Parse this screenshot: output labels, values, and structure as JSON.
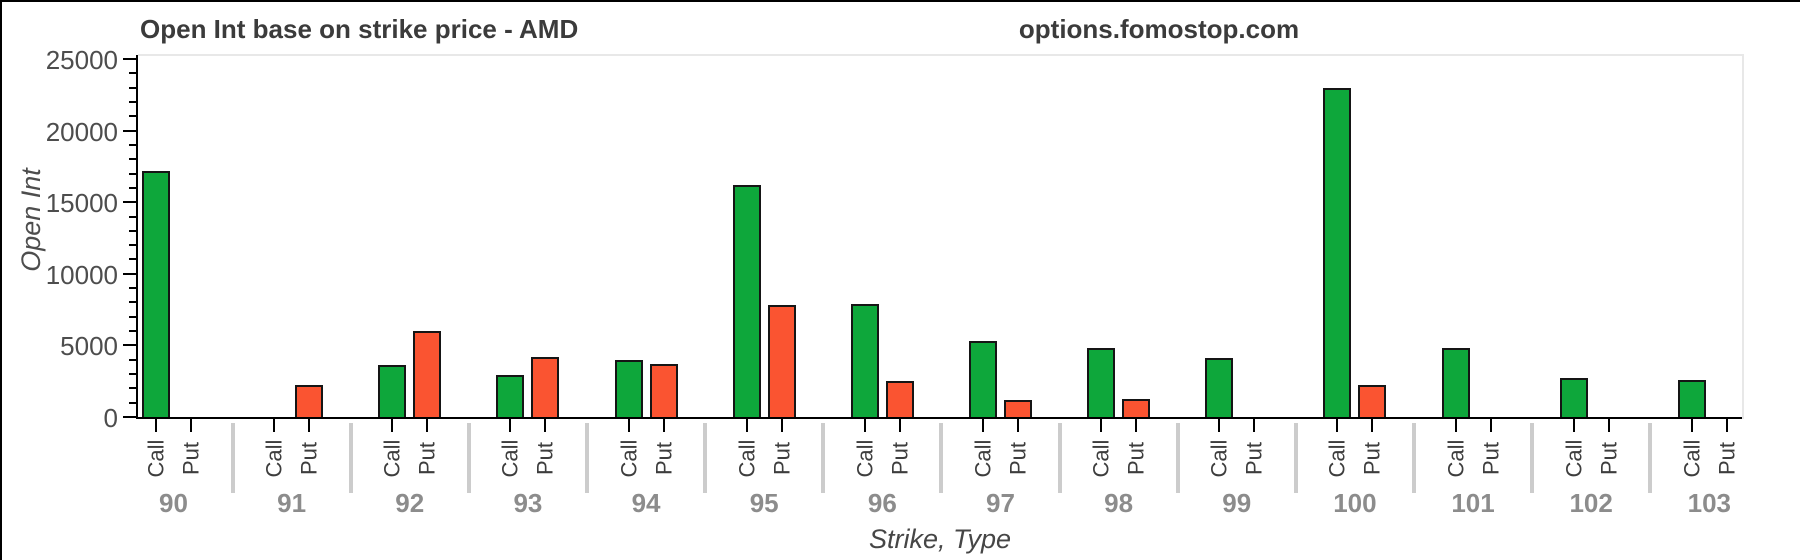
{
  "header": {
    "title": "Open Int base on strike price - AMD",
    "watermark": "options.fomostop.com"
  },
  "axes": {
    "y_label": "Open Int",
    "x_label": "Strike, Type",
    "y_tick_labels": [
      "0",
      "5000",
      "10000",
      "15000",
      "20000",
      "25000"
    ],
    "y_minor_step": 1000,
    "sub_category_labels": [
      "Call",
      "Put"
    ]
  },
  "colors": {
    "call_green": "#0ea73b",
    "put_red": "#fa5431",
    "bar_stroke": "#151515",
    "axis_black": "#000000",
    "group_separator": "#cccccc",
    "plot_border": "#e8e8e8",
    "title_text": "#3b3b3b",
    "tick_text": "#4d4d4d",
    "strike_text": "#8c8c8c",
    "type_text": "#3d3d3d"
  },
  "chart_data": {
    "type": "bar",
    "title": "Open Int base on strike price - AMD",
    "xlabel": "Strike, Type",
    "ylabel": "Open Int",
    "ylim": [
      0,
      25000
    ],
    "y_major_ticks": [
      0,
      5000,
      10000,
      15000,
      20000,
      25000
    ],
    "y_minor_tick_step": 1000,
    "grid": false,
    "legend": "none",
    "categories": [
      "90",
      "91",
      "92",
      "93",
      "94",
      "95",
      "96",
      "97",
      "98",
      "99",
      "100",
      "101",
      "102",
      "103"
    ],
    "sub_categories": [
      "Call",
      "Put"
    ],
    "series": [
      {
        "name": "Call",
        "color": "#0ea73b",
        "values": [
          17200,
          0,
          3600,
          2900,
          4000,
          16200,
          7900,
          5300,
          4800,
          4100,
          23000,
          4800,
          2700,
          2600
        ]
      },
      {
        "name": "Put",
        "color": "#fa5431",
        "values": [
          0,
          2200,
          6000,
          4200,
          3700,
          7800,
          2500,
          1200,
          1250,
          0,
          2200,
          0,
          0,
          0
        ]
      }
    ]
  }
}
